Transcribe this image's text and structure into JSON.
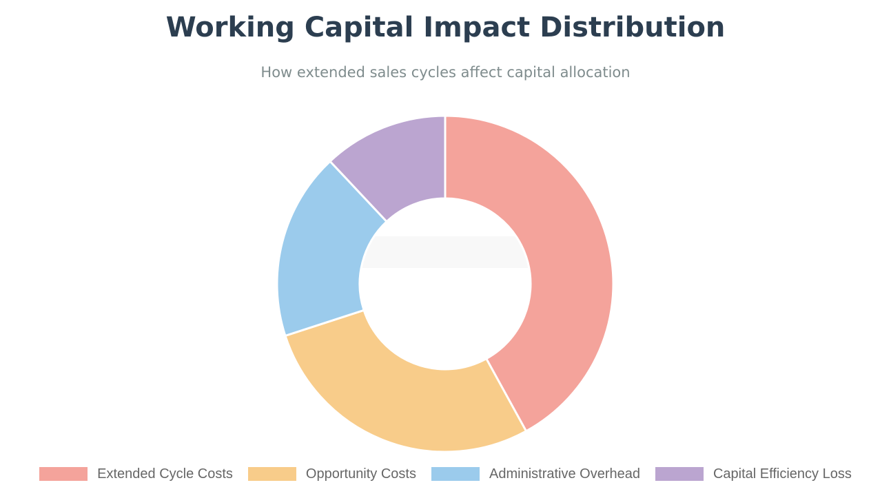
{
  "chart_data": {
    "type": "doughnut",
    "title": "Working Capital Impact Distribution",
    "subtitle": "How extended sales cycles affect capital allocation",
    "categories": [
      "Extended Cycle Costs",
      "Opportunity Costs",
      "Administrative Overhead",
      "Capital Efficiency Loss"
    ],
    "values": [
      42,
      28,
      18,
      12
    ],
    "colors": [
      "#f4a39b",
      "#f8cc8a",
      "#9bcbec",
      "#bba5d0"
    ],
    "legend_position": "bottom"
  }
}
